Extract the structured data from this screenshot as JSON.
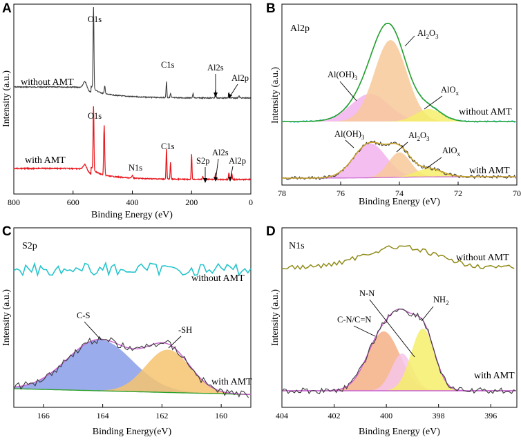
{
  "colors": {
    "black_trace": "#3a3a3a",
    "red_trace": "#e8191f",
    "cyan": "#25c4cc",
    "green": "#2ca02c",
    "olive": "#8f8a17",
    "purple_env": "#c860d0",
    "orange_fill": "#f7c99a",
    "pink_fill": "#f2b3ee",
    "yellow_fill": "#f4ee6a",
    "blue_fill": "#8fa3ea",
    "gold_fill": "#f6c36e",
    "salmon_fill": "#f5b58c",
    "lightpink_fill": "#f6c6e8",
    "gold_env": "#c8a22a"
  },
  "chart_data": [
    {
      "panel": "A",
      "type": "line",
      "title": "",
      "xlabel": "Binding Energy (eV)",
      "ylabel": "Intensity (a.u.)",
      "xlim": [
        800,
        0
      ],
      "xticks": [
        "800",
        "600",
        "400",
        "200",
        "0"
      ],
      "series": [
        {
          "name": "without AMT",
          "color": "#3a3a3a",
          "peaks": [
            {
              "label": "O1s",
              "x": 531,
              "height": 0.93
            },
            {
              "label": "C1s",
              "x": 284.8,
              "height": 0.6
            },
            {
              "label": "Al2s",
              "x": 119,
              "height": 0.12
            },
            {
              "label": "Al2p",
              "x": 74,
              "height": 0.1
            }
          ]
        },
        {
          "name": "with AMT",
          "color": "#e8191f",
          "peaks": [
            {
              "label": "O1s",
              "x": 531,
              "height": 0.95
            },
            {
              "label": "N1s",
              "x": 400,
              "height": 0.03
            },
            {
              "label": "C1s",
              "x": 284.8,
              "height": 0.7
            },
            {
              "label": "S2p",
              "x": 162,
              "height": 0.05
            },
            {
              "label": "Al2s",
              "x": 119,
              "height": 0.1
            },
            {
              "label": "Al2p",
              "x": 74,
              "height": 0.09
            }
          ]
        }
      ],
      "annotations": [
        "O1s",
        "C1s",
        "Al2s",
        "Al2p",
        "O1s",
        "N1s",
        "C1s",
        "S2p",
        "Al2s",
        "Al2p"
      ]
    },
    {
      "panel": "B",
      "type": "line",
      "title": "Al2p",
      "xlabel": "Binding Energy (eV)",
      "ylabel": "Intensity (a.u.)",
      "xlim": [
        78,
        70
      ],
      "xticks": [
        "78",
        "76",
        "74",
        "72",
        "70"
      ],
      "series": [
        {
          "name": "without AMT",
          "components": [
            {
              "label": "Al2O3",
              "center": 74.3,
              "height": 0.9,
              "color": "#f7c99a"
            },
            {
              "label": "Al(OH)3",
              "center": 75.0,
              "height": 0.3,
              "color": "#f2b3ee"
            },
            {
              "label": "AlOx",
              "center": 73.0,
              "height": 0.14,
              "color": "#f4ee6a"
            }
          ]
        },
        {
          "name": "with AMT",
          "components": [
            {
              "label": "Al(OH)3",
              "center": 75.0,
              "height": 0.6,
              "color": "#f2b3ee"
            },
            {
              "label": "Al2O3",
              "center": 74.0,
              "height": 0.45,
              "color": "#f7c99a"
            },
            {
              "label": "AlOx",
              "center": 73.0,
              "height": 0.15,
              "color": "#f4ee6a"
            }
          ]
        }
      ],
      "annotations": {
        "al2o3": "Al",
        "al2o3_sub": "2",
        "al2o3_o": "O",
        "al2o3_sub2": "3",
        "aloh": "Al(OH)",
        "aloh_sub": "3",
        "alo": "AlO",
        "alo_sub": "x"
      }
    },
    {
      "panel": "C",
      "type": "line",
      "title": "S2p",
      "xlabel": "Binding Energy(eV)",
      "ylabel": "Intensity (a.u.)",
      "xlim": [
        167,
        159
      ],
      "xticks": [
        "166",
        "164",
        "162",
        "160"
      ],
      "series": [
        {
          "name": "without AMT",
          "color": "#25c4cc"
        },
        {
          "name": "with AMT",
          "components": [
            {
              "label": "C-S",
              "center": 164.1,
              "height": 0.75,
              "color": "#8fa3ea"
            },
            {
              "label": "-SH",
              "center": 161.8,
              "height": 0.65,
              "color": "#f6c36e"
            }
          ]
        }
      ]
    },
    {
      "panel": "D",
      "type": "line",
      "title": "N1s",
      "xlabel": "Binding Energy (eV)",
      "ylabel": "Intensity (a.u.)",
      "xlim": [
        404,
        395
      ],
      "xticks": [
        "404",
        "402",
        "400",
        "398",
        "396"
      ],
      "series": [
        {
          "name": "without AMT",
          "color": "#8f8a17"
        },
        {
          "name": "with AMT",
          "components": [
            {
              "label": "C-N/C=N",
              "center": 400.1,
              "height": 0.76,
              "color": "#f5b58c"
            },
            {
              "label": "N-N",
              "center": 399.4,
              "height": 0.48,
              "color": "#f6c6e8"
            },
            {
              "label": "NH2",
              "center": 398.6,
              "height": 0.8,
              "color": "#f4ee6a"
            }
          ]
        }
      ],
      "annotations": {
        "nh": "NH",
        "nh_sub": "2"
      }
    }
  ]
}
